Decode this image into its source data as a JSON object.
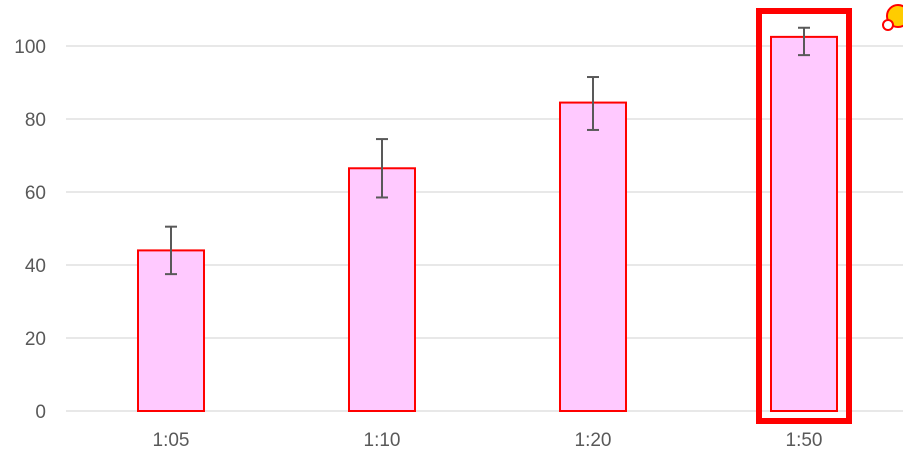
{
  "chart_data": {
    "type": "bar",
    "title": "",
    "xlabel": "",
    "ylabel": "",
    "categories": [
      "1:05",
      "1:10",
      "1:20",
      "1:50"
    ],
    "series": [
      {
        "values": [
          44,
          66.5,
          84.5,
          102.5
        ],
        "error_low": [
          37.5,
          58.5,
          77,
          97.5
        ],
        "error_high": [
          50.5,
          74.5,
          91.5,
          105
        ]
      }
    ],
    "ylim": [
      0,
      100
    ],
    "yticks": [
      0,
      20,
      40,
      60,
      80,
      100
    ],
    "grid": true,
    "legend": "none",
    "highlighted_category": "1:50",
    "colors": {
      "bar_fill": "#ffc9ff",
      "bar_stroke": "#ff0000",
      "highlight_box": "#ff0000",
      "gridline": "#d9d9d9",
      "error_bar": "#595959",
      "tick_label": "#595959",
      "corner_mark_fill": "#ffcc00",
      "corner_mark_stroke": "#ff0000"
    }
  }
}
